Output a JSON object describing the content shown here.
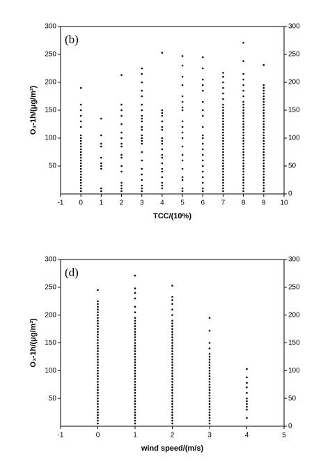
{
  "chart_data": [
    {
      "type": "scatter",
      "annotation": "(b)",
      "x_label": "TCC/(10%)",
      "y_label": "O₃-1h/(μg/m³)",
      "xlim": [
        -1,
        10
      ],
      "xticks": [
        -1,
        0,
        1,
        2,
        3,
        4,
        5,
        6,
        7,
        8,
        9,
        10
      ],
      "ylim": [
        0,
        300
      ],
      "yticks": [
        50,
        100,
        150,
        200,
        250,
        300
      ],
      "y2lim": [
        0,
        300
      ],
      "y2ticks": [
        0,
        50,
        100,
        150,
        200,
        250,
        300
      ],
      "color": "#000000",
      "series": [
        {
          "x": 0,
          "values": [
            190,
            160,
            150,
            140,
            130,
            120,
            105,
            100,
            95,
            90,
            85,
            80,
            75,
            70,
            65,
            60,
            55,
            50,
            45,
            40,
            35,
            30,
            25,
            20,
            15,
            10,
            5
          ]
        },
        {
          "x": 1,
          "values": [
            135,
            105,
            90,
            85,
            65,
            55,
            50,
            45,
            10,
            5
          ]
        },
        {
          "x": 2,
          "values": [
            213,
            160,
            150,
            140,
            125,
            110,
            100,
            90,
            85,
            70,
            65,
            50,
            40,
            20,
            15,
            10,
            5
          ]
        },
        {
          "x": 3,
          "values": [
            225,
            215,
            200,
            185,
            175,
            160,
            150,
            140,
            135,
            130,
            120,
            115,
            105,
            100,
            95,
            90,
            75,
            60,
            45,
            35,
            25,
            15,
            10,
            5
          ]
        },
        {
          "x": 4,
          "values": [
            253,
            150,
            145,
            140,
            130,
            120,
            115,
            100,
            95,
            90,
            80,
            70,
            65,
            55,
            45,
            40,
            30,
            20,
            15,
            10
          ]
        },
        {
          "x": 5,
          "values": [
            247,
            230,
            210,
            195,
            175,
            165,
            155,
            150,
            130,
            120,
            110,
            100,
            85,
            70,
            60,
            45,
            30,
            25,
            10,
            5
          ]
        },
        {
          "x": 6,
          "values": [
            245,
            225,
            205,
            195,
            185,
            165,
            150,
            140,
            120,
            105,
            100,
            90,
            80,
            70,
            60,
            50,
            40,
            30,
            20,
            10,
            5
          ]
        },
        {
          "x": 7,
          "values": [
            217,
            210,
            200,
            190,
            180,
            170,
            160,
            155,
            150,
            145,
            140,
            135,
            130,
            125,
            120,
            115,
            110,
            105,
            100,
            95,
            90,
            85,
            80,
            75,
            70,
            65,
            60,
            55,
            50,
            45,
            40,
            35,
            30,
            25,
            20,
            15,
            10,
            5
          ]
        },
        {
          "x": 8,
          "values": [
            271,
            238,
            215,
            205,
            195,
            185,
            175,
            165,
            160,
            155,
            150,
            145,
            140,
            135,
            130,
            125,
            120,
            115,
            110,
            105,
            100,
            95,
            90,
            85,
            80,
            75,
            70,
            65,
            60,
            55,
            50,
            45,
            40,
            35,
            30,
            25,
            20,
            15,
            10,
            5
          ]
        },
        {
          "x": 9,
          "values": [
            231,
            195,
            190,
            185,
            180,
            175,
            170,
            165,
            160,
            155,
            150,
            145,
            140,
            135,
            130,
            125,
            120,
            115,
            110,
            105,
            100,
            95,
            90,
            85,
            80,
            75,
            70,
            65,
            60,
            55,
            50,
            45,
            40,
            35,
            30,
            25,
            20,
            15,
            10,
            5
          ]
        }
      ]
    },
    {
      "type": "scatter",
      "annotation": "(d)",
      "x_label": "wind speed/(m/s)",
      "y_label": "O₃-1h/(μg/m³)",
      "xlim": [
        -1,
        5
      ],
      "xticks": [
        -1,
        0,
        1,
        2,
        3,
        4,
        5
      ],
      "ylim": [
        0,
        300
      ],
      "yticks": [
        50,
        100,
        150,
        200,
        250,
        300
      ],
      "y2lim": [
        0,
        300
      ],
      "y2ticks": [
        0,
        50,
        100,
        150,
        200,
        250,
        300
      ],
      "color": "#000000",
      "series": [
        {
          "x": 0,
          "values": [
            245,
            225,
            220,
            215,
            210,
            205,
            200,
            195,
            190,
            185,
            180,
            175,
            170,
            165,
            160,
            155,
            150,
            145,
            140,
            135,
            130,
            125,
            120,
            115,
            110,
            105,
            100,
            95,
            90,
            85,
            80,
            75,
            70,
            65,
            60,
            55,
            50,
            45,
            40,
            35,
            30,
            25,
            20,
            15,
            10,
            5
          ]
        },
        {
          "x": 1,
          "values": [
            271,
            248,
            240,
            230,
            215,
            205,
            195,
            190,
            185,
            180,
            175,
            170,
            165,
            160,
            155,
            150,
            145,
            140,
            135,
            130,
            125,
            120,
            115,
            110,
            105,
            100,
            95,
            90,
            85,
            80,
            75,
            70,
            65,
            60,
            55,
            50,
            45,
            40,
            35,
            30,
            25,
            20,
            15,
            10,
            5
          ]
        },
        {
          "x": 2,
          "values": [
            253,
            233,
            227,
            220,
            210,
            200,
            190,
            185,
            180,
            175,
            170,
            165,
            160,
            155,
            150,
            145,
            140,
            135,
            130,
            125,
            120,
            115,
            110,
            105,
            100,
            95,
            90,
            85,
            80,
            75,
            70,
            65,
            60,
            55,
            50,
            45,
            40,
            35,
            30,
            25,
            20,
            15,
            10,
            5
          ]
        },
        {
          "x": 3,
          "values": [
            195,
            172,
            150,
            140,
            130,
            125,
            120,
            115,
            110,
            105,
            100,
            95,
            90,
            85,
            80,
            75,
            70,
            65,
            60,
            55,
            50,
            45,
            40,
            35,
            30,
            25,
            20,
            15,
            10,
            5
          ]
        },
        {
          "x": 4,
          "values": [
            103,
            88,
            78,
            70,
            60,
            50,
            45,
            40,
            35,
            30,
            15
          ]
        }
      ]
    }
  ]
}
